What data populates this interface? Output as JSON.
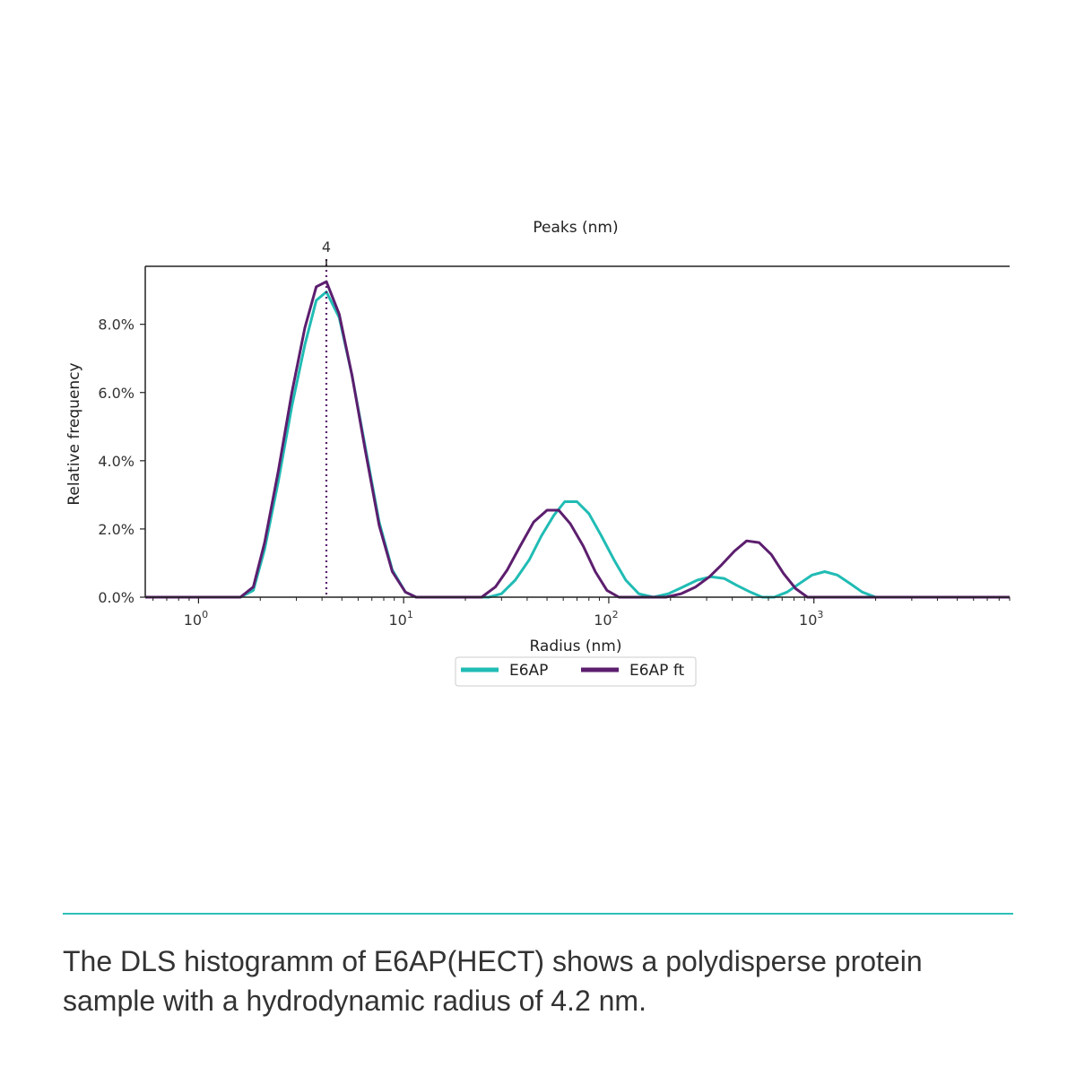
{
  "chart_data": {
    "type": "line",
    "title": "Peaks (nm)",
    "xlabel": "Radius (nm)",
    "ylabel": "Relative frequency",
    "xscale": "log",
    "xlim": [
      0.55,
      9000
    ],
    "ylim": [
      0,
      0.097
    ],
    "yticks": [
      {
        "value": 0.0,
        "label": "0.0%"
      },
      {
        "value": 0.02,
        "label": "2.0%"
      },
      {
        "value": 0.04,
        "label": "4.0%"
      },
      {
        "value": 0.06,
        "label": "6.0%"
      },
      {
        "value": 0.08,
        "label": "8.0%"
      }
    ],
    "xticks": [
      {
        "value": 1,
        "base": "10",
        "exp": "0"
      },
      {
        "value": 10,
        "base": "10",
        "exp": "1"
      },
      {
        "value": 100,
        "base": "10",
        "exp": "2"
      },
      {
        "value": 1000,
        "base": "10",
        "exp": "3"
      }
    ],
    "peak_marker": {
      "x": 4.2,
      "label": "4"
    },
    "legend": "bottom-center",
    "grid": false,
    "series": [
      {
        "name": "E6AP",
        "color": "#20bcb4",
        "points": [
          [
            0.55,
            0
          ],
          [
            1.6,
            0
          ],
          [
            1.85,
            0.002
          ],
          [
            2.1,
            0.014
          ],
          [
            2.45,
            0.034
          ],
          [
            2.85,
            0.056
          ],
          [
            3.3,
            0.074
          ],
          [
            3.75,
            0.087
          ],
          [
            4.2,
            0.0895
          ],
          [
            4.85,
            0.082
          ],
          [
            5.6,
            0.065
          ],
          [
            6.5,
            0.044
          ],
          [
            7.6,
            0.022
          ],
          [
            8.8,
            0.008
          ],
          [
            10.2,
            0.0015
          ],
          [
            11.5,
            0
          ],
          [
            26,
            0
          ],
          [
            30,
            0.001
          ],
          [
            35,
            0.005
          ],
          [
            41,
            0.011
          ],
          [
            47,
            0.018
          ],
          [
            54,
            0.024
          ],
          [
            61,
            0.028
          ],
          [
            70,
            0.028
          ],
          [
            80,
            0.0245
          ],
          [
            92,
            0.018
          ],
          [
            106,
            0.011
          ],
          [
            121,
            0.005
          ],
          [
            140,
            0.001
          ],
          [
            165,
            0
          ],
          [
            195,
            0.001
          ],
          [
            230,
            0.003
          ],
          [
            270,
            0.005
          ],
          [
            315,
            0.006
          ],
          [
            365,
            0.0055
          ],
          [
            420,
            0.0035
          ],
          [
            490,
            0.0015
          ],
          [
            560,
            0
          ],
          [
            640,
            0
          ],
          [
            740,
            0.0015
          ],
          [
            850,
            0.004
          ],
          [
            980,
            0.0065
          ],
          [
            1130,
            0.0075
          ],
          [
            1300,
            0.0065
          ],
          [
            1500,
            0.004
          ],
          [
            1720,
            0.0015
          ],
          [
            2000,
            0
          ],
          [
            9000,
            0
          ]
        ]
      },
      {
        "name": "E6AP ft",
        "color": "#5c1e6e",
        "points": [
          [
            0.55,
            0
          ],
          [
            1.6,
            0
          ],
          [
            1.85,
            0.003
          ],
          [
            2.1,
            0.016
          ],
          [
            2.45,
            0.037
          ],
          [
            2.85,
            0.06
          ],
          [
            3.3,
            0.079
          ],
          [
            3.75,
            0.091
          ],
          [
            4.2,
            0.0925
          ],
          [
            4.85,
            0.083
          ],
          [
            5.6,
            0.065
          ],
          [
            6.5,
            0.043
          ],
          [
            7.6,
            0.021
          ],
          [
            8.8,
            0.0075
          ],
          [
            10.2,
            0.0015
          ],
          [
            11.5,
            0
          ],
          [
            24,
            0
          ],
          [
            28,
            0.003
          ],
          [
            32,
            0.008
          ],
          [
            37,
            0.015
          ],
          [
            43,
            0.022
          ],
          [
            50,
            0.0255
          ],
          [
            57,
            0.0255
          ],
          [
            65,
            0.0215
          ],
          [
            75,
            0.015
          ],
          [
            86,
            0.0075
          ],
          [
            98,
            0.002
          ],
          [
            112,
            0
          ],
          [
            190,
            0
          ],
          [
            225,
            0.001
          ],
          [
            265,
            0.003
          ],
          [
            310,
            0.006
          ],
          [
            355,
            0.0095
          ],
          [
            410,
            0.0135
          ],
          [
            470,
            0.0165
          ],
          [
            540,
            0.016
          ],
          [
            620,
            0.0125
          ],
          [
            710,
            0.007
          ],
          [
            815,
            0.0025
          ],
          [
            930,
            0
          ],
          [
            9000,
            0
          ]
        ]
      }
    ]
  },
  "caption": "The DLS histogramm of E6AP(HECT) shows a polydisperse protein sample with a hydrodynamic radius of 4.2 nm.",
  "colors": {
    "accent_rule": "#2ebfb6"
  }
}
